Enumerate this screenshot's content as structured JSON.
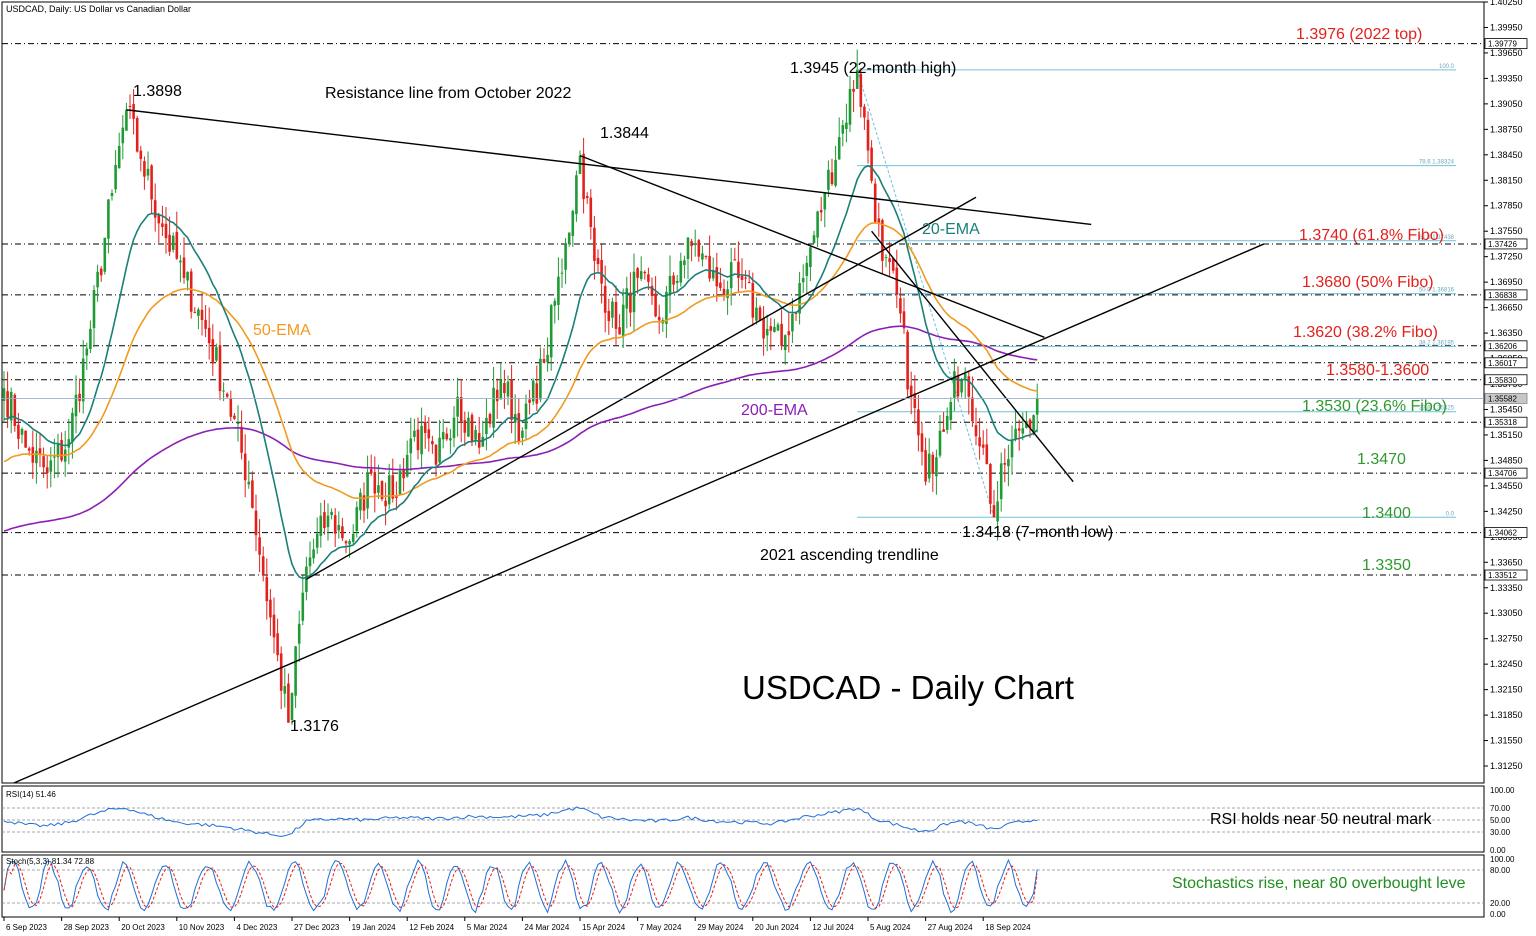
{
  "header": {
    "title": "USDCAD, Daily:  US Dollar vs Canadian Dollar"
  },
  "chart_data": {
    "type": "candlestick",
    "title": "USDCAD - Daily Chart",
    "symbol": "USDCAD",
    "timeframe": "Daily",
    "ylim": [
      1.3105,
      1.4025
    ],
    "y_ticks": [
      1.4025,
      1.3995,
      1.3965,
      1.3935,
      1.3905,
      1.3875,
      1.3845,
      1.3815,
      1.3785,
      1.3755,
      1.3725,
      1.3695,
      1.3665,
      1.3635,
      1.3605,
      1.3575,
      1.3545,
      1.3515,
      1.3485,
      1.3455,
      1.3425,
      1.3395,
      1.3365,
      1.3335,
      1.3305,
      1.3275,
      1.3245,
      1.3215,
      1.3185,
      1.3155,
      1.3125
    ],
    "y_tick_labels": [
      "1.40250",
      "1.39950",
      "1.39650",
      "1.39350",
      "1.39050",
      "1.38750",
      "1.38450",
      "1.38150",
      "1.37850",
      "1.37550",
      "1.37250",
      "1.36950",
      "1.36650",
      "1.36350",
      "1.36050",
      "1.35750",
      "1.35450",
      "1.35150",
      "1.34850",
      "1.34550",
      "1.34250",
      "1.33950",
      "1.33650",
      "1.33350",
      "1.33050",
      "1.32750",
      "1.32450",
      "1.32150",
      "1.31850",
      "1.31550",
      "1.31250"
    ],
    "x_labels": [
      "6 Sep 2023",
      "28 Sep 2023",
      "20 Oct 2023",
      "10 Nov 2023",
      "4 Dec 2023",
      "27 Dec 2023",
      "19 Jan 2024",
      "12 Feb 2024",
      "5 Mar 2024",
      "24 Mar 2024",
      "15 Apr 2024",
      "7 May 2024",
      "29 May 2024",
      "20 Jun 2024",
      "12 Jul 2024",
      "5 Aug 2024",
      "27 Aug 2024",
      "18 Sep 2024"
    ],
    "x_label_bar_index": [
      0,
      16,
      32,
      48,
      64,
      80,
      96,
      112,
      128,
      144,
      160,
      176,
      192,
      208,
      224,
      240,
      256,
      272
    ],
    "candle_count": 288,
    "price_path": [
      [
        0,
        1.357
      ],
      [
        6,
        1.35
      ],
      [
        12,
        1.347
      ],
      [
        18,
        1.351
      ],
      [
        24,
        1.364
      ],
      [
        30,
        1.38
      ],
      [
        34,
        1.3898
      ],
      [
        38,
        1.384
      ],
      [
        44,
        1.376
      ],
      [
        50,
        1.37
      ],
      [
        56,
        1.364
      ],
      [
        62,
        1.356
      ],
      [
        68,
        1.346
      ],
      [
        74,
        1.33
      ],
      [
        79,
        1.3176
      ],
      [
        84,
        1.336
      ],
      [
        90,
        1.342
      ],
      [
        96,
        1.339
      ],
      [
        102,
        1.347
      ],
      [
        108,
        1.344
      ],
      [
        114,
        1.352
      ],
      [
        120,
        1.348
      ],
      [
        126,
        1.356
      ],
      [
        132,
        1.35
      ],
      [
        138,
        1.358
      ],
      [
        144,
        1.352
      ],
      [
        150,
        1.36
      ],
      [
        156,
        1.374
      ],
      [
        160,
        1.3844
      ],
      [
        164,
        1.372
      ],
      [
        170,
        1.364
      ],
      [
        176,
        1.37
      ],
      [
        182,
        1.365
      ],
      [
        188,
        1.372
      ],
      [
        192,
        1.374
      ],
      [
        198,
        1.369
      ],
      [
        204,
        1.37
      ],
      [
        210,
        1.365
      ],
      [
        216,
        1.362
      ],
      [
        222,
        1.37
      ],
      [
        228,
        1.38
      ],
      [
        233,
        1.388
      ],
      [
        237,
        1.3945
      ],
      [
        240,
        1.385
      ],
      [
        244,
        1.372
      ],
      [
        248,
        1.368
      ],
      [
        252,
        1.356
      ],
      [
        256,
        1.346
      ],
      [
        260,
        1.352
      ],
      [
        264,
        1.359
      ],
      [
        268,
        1.356
      ],
      [
        272,
        1.35
      ],
      [
        275,
        1.3418
      ],
      [
        278,
        1.348
      ],
      [
        282,
        1.352
      ],
      [
        287,
        1.3558
      ]
    ],
    "indicators": {
      "ema20": {
        "label": "20-EMA",
        "color": "#1b7f7a",
        "period": 20
      },
      "ema50": {
        "label": "50-EMA",
        "color": "#f29a1f",
        "period": 50
      },
      "ema200": {
        "label": "200-EMA",
        "color": "#8b1fb5",
        "period": 200
      }
    },
    "levels": [
      {
        "value": 1.3976,
        "label": "1.3976 (2022 top)",
        "color": "#e3211c",
        "axis_tag": "1.39779"
      },
      {
        "value": 1.374,
        "label": "1.3740 (61.8% Fibo)",
        "color": "#e3211c",
        "axis_tag": "1.37426"
      },
      {
        "value": 1.368,
        "label": "1.3680 (50% Fibo)",
        "color": "#e3211c",
        "axis_tag": "1.36838"
      },
      {
        "value": 1.362,
        "label": "1.3620 (38.2% Fibo)",
        "color": "#e3211c",
        "axis_tag": "1.36206"
      },
      {
        "value": 1.36,
        "label": "",
        "color": "#e3211c",
        "axis_tag": "1.36017"
      },
      {
        "value": 1.358,
        "label": "1.3580-1.3600",
        "color": "#e3211c",
        "axis_tag": "1.35830"
      },
      {
        "value": 1.353,
        "label": "1.3530 (23.6% Fibo)",
        "color": "#2e9a2e",
        "axis_tag": "1.35318"
      },
      {
        "value": 1.347,
        "label": "1.3470",
        "color": "#2e9a2e",
        "axis_tag": "1.34706"
      },
      {
        "value": 1.34,
        "label": "1.3400",
        "color": "#2e9a2e",
        "axis_tag": "1.34062"
      },
      {
        "value": 1.335,
        "label": "1.3350",
        "color": "#2e9a2e",
        "axis_tag": "1.33512"
      }
    ],
    "current_price_tag": "1.35582",
    "current_price": 1.3558,
    "fib": {
      "from": [
        237,
        1.3945
      ],
      "to": [
        275,
        1.3418
      ],
      "labels": [
        "100.0",
        "78.6 1.38324",
        "61.8 1.37438",
        "50.0 1.36816",
        "38.2 1.36195",
        "23.6 1.35425",
        "0.0"
      ]
    },
    "trendlines": [
      {
        "label": "Resistance line from October 2022",
        "from": [
          34,
          1.3898
        ],
        "to": [
          302,
          1.3763
        ]
      },
      {
        "label": "2021 ascending trendline",
        "from": [
          0,
          1.31
        ],
        "to": [
          350,
          1.374
        ]
      },
      {
        "label": "",
        "from": [
          84,
          1.3345
        ],
        "to": [
          270,
          1.3795
        ]
      },
      {
        "label": "",
        "from": [
          160,
          1.3844
        ],
        "to": [
          289,
          1.363
        ]
      },
      {
        "label": "",
        "from": [
          241,
          1.3755
        ],
        "to": [
          297,
          1.346
        ]
      }
    ],
    "point_labels": [
      {
        "text": "1.3898",
        "bar": 34,
        "value": 1.3898
      },
      {
        "text": "1.3844",
        "bar": 160,
        "value": 1.3844
      },
      {
        "text": "1.3945 (22-month high)",
        "bar": 237,
        "value": 1.3945
      },
      {
        "text": "1.3176",
        "bar": 79,
        "value": 1.3176
      },
      {
        "text": "1.3418 (7-month low)",
        "bar": 275,
        "value": 1.3418
      }
    ],
    "rsi": {
      "title": "RSI(14) 51.46",
      "ylim": [
        0,
        100
      ],
      "tick_labels": [
        "100.00",
        "70.00",
        "50.00",
        "30.00",
        "0.00"
      ],
      "levels": [
        70,
        50,
        30
      ],
      "annotation": "RSI holds near 50 neutral mark",
      "color": "#1e6fd9",
      "path": [
        [
          0,
          50
        ],
        [
          6,
          42
        ],
        [
          12,
          40
        ],
        [
          18,
          46
        ],
        [
          24,
          58
        ],
        [
          30,
          68
        ],
        [
          34,
          70
        ],
        [
          40,
          58
        ],
        [
          48,
          46
        ],
        [
          56,
          42
        ],
        [
          62,
          38
        ],
        [
          68,
          32
        ],
        [
          74,
          26
        ],
        [
          79,
          24
        ],
        [
          84,
          48
        ],
        [
          92,
          52
        ],
        [
          100,
          50
        ],
        [
          110,
          54
        ],
        [
          120,
          52
        ],
        [
          130,
          56
        ],
        [
          140,
          55
        ],
        [
          150,
          58
        ],
        [
          157,
          68
        ],
        [
          160,
          70
        ],
        [
          166,
          55
        ],
        [
          174,
          50
        ],
        [
          182,
          48
        ],
        [
          190,
          54
        ],
        [
          198,
          48
        ],
        [
          206,
          46
        ],
        [
          214,
          44
        ],
        [
          222,
          55
        ],
        [
          230,
          62
        ],
        [
          237,
          70
        ],
        [
          242,
          52
        ],
        [
          248,
          42
        ],
        [
          254,
          32
        ],
        [
          258,
          34
        ],
        [
          262,
          44
        ],
        [
          266,
          48
        ],
        [
          270,
          42
        ],
        [
          275,
          34
        ],
        [
          280,
          44
        ],
        [
          287,
          51.5
        ]
      ]
    },
    "stoch": {
      "title": "Stoch(5,3,3) 81.34 72.88",
      "ylim": [
        0,
        100
      ],
      "tick_labels": [
        "100.00",
        "80.00",
        "20.00",
        "0.00"
      ],
      "levels": [
        80,
        20
      ],
      "annotation": "Stochastics rise, near 80 overbought leve",
      "main_color": "#1e6fd9",
      "signal_color": "#e3211c",
      "main_value": 81.34,
      "signal_value": 72.88,
      "period_bars": 11
    }
  }
}
